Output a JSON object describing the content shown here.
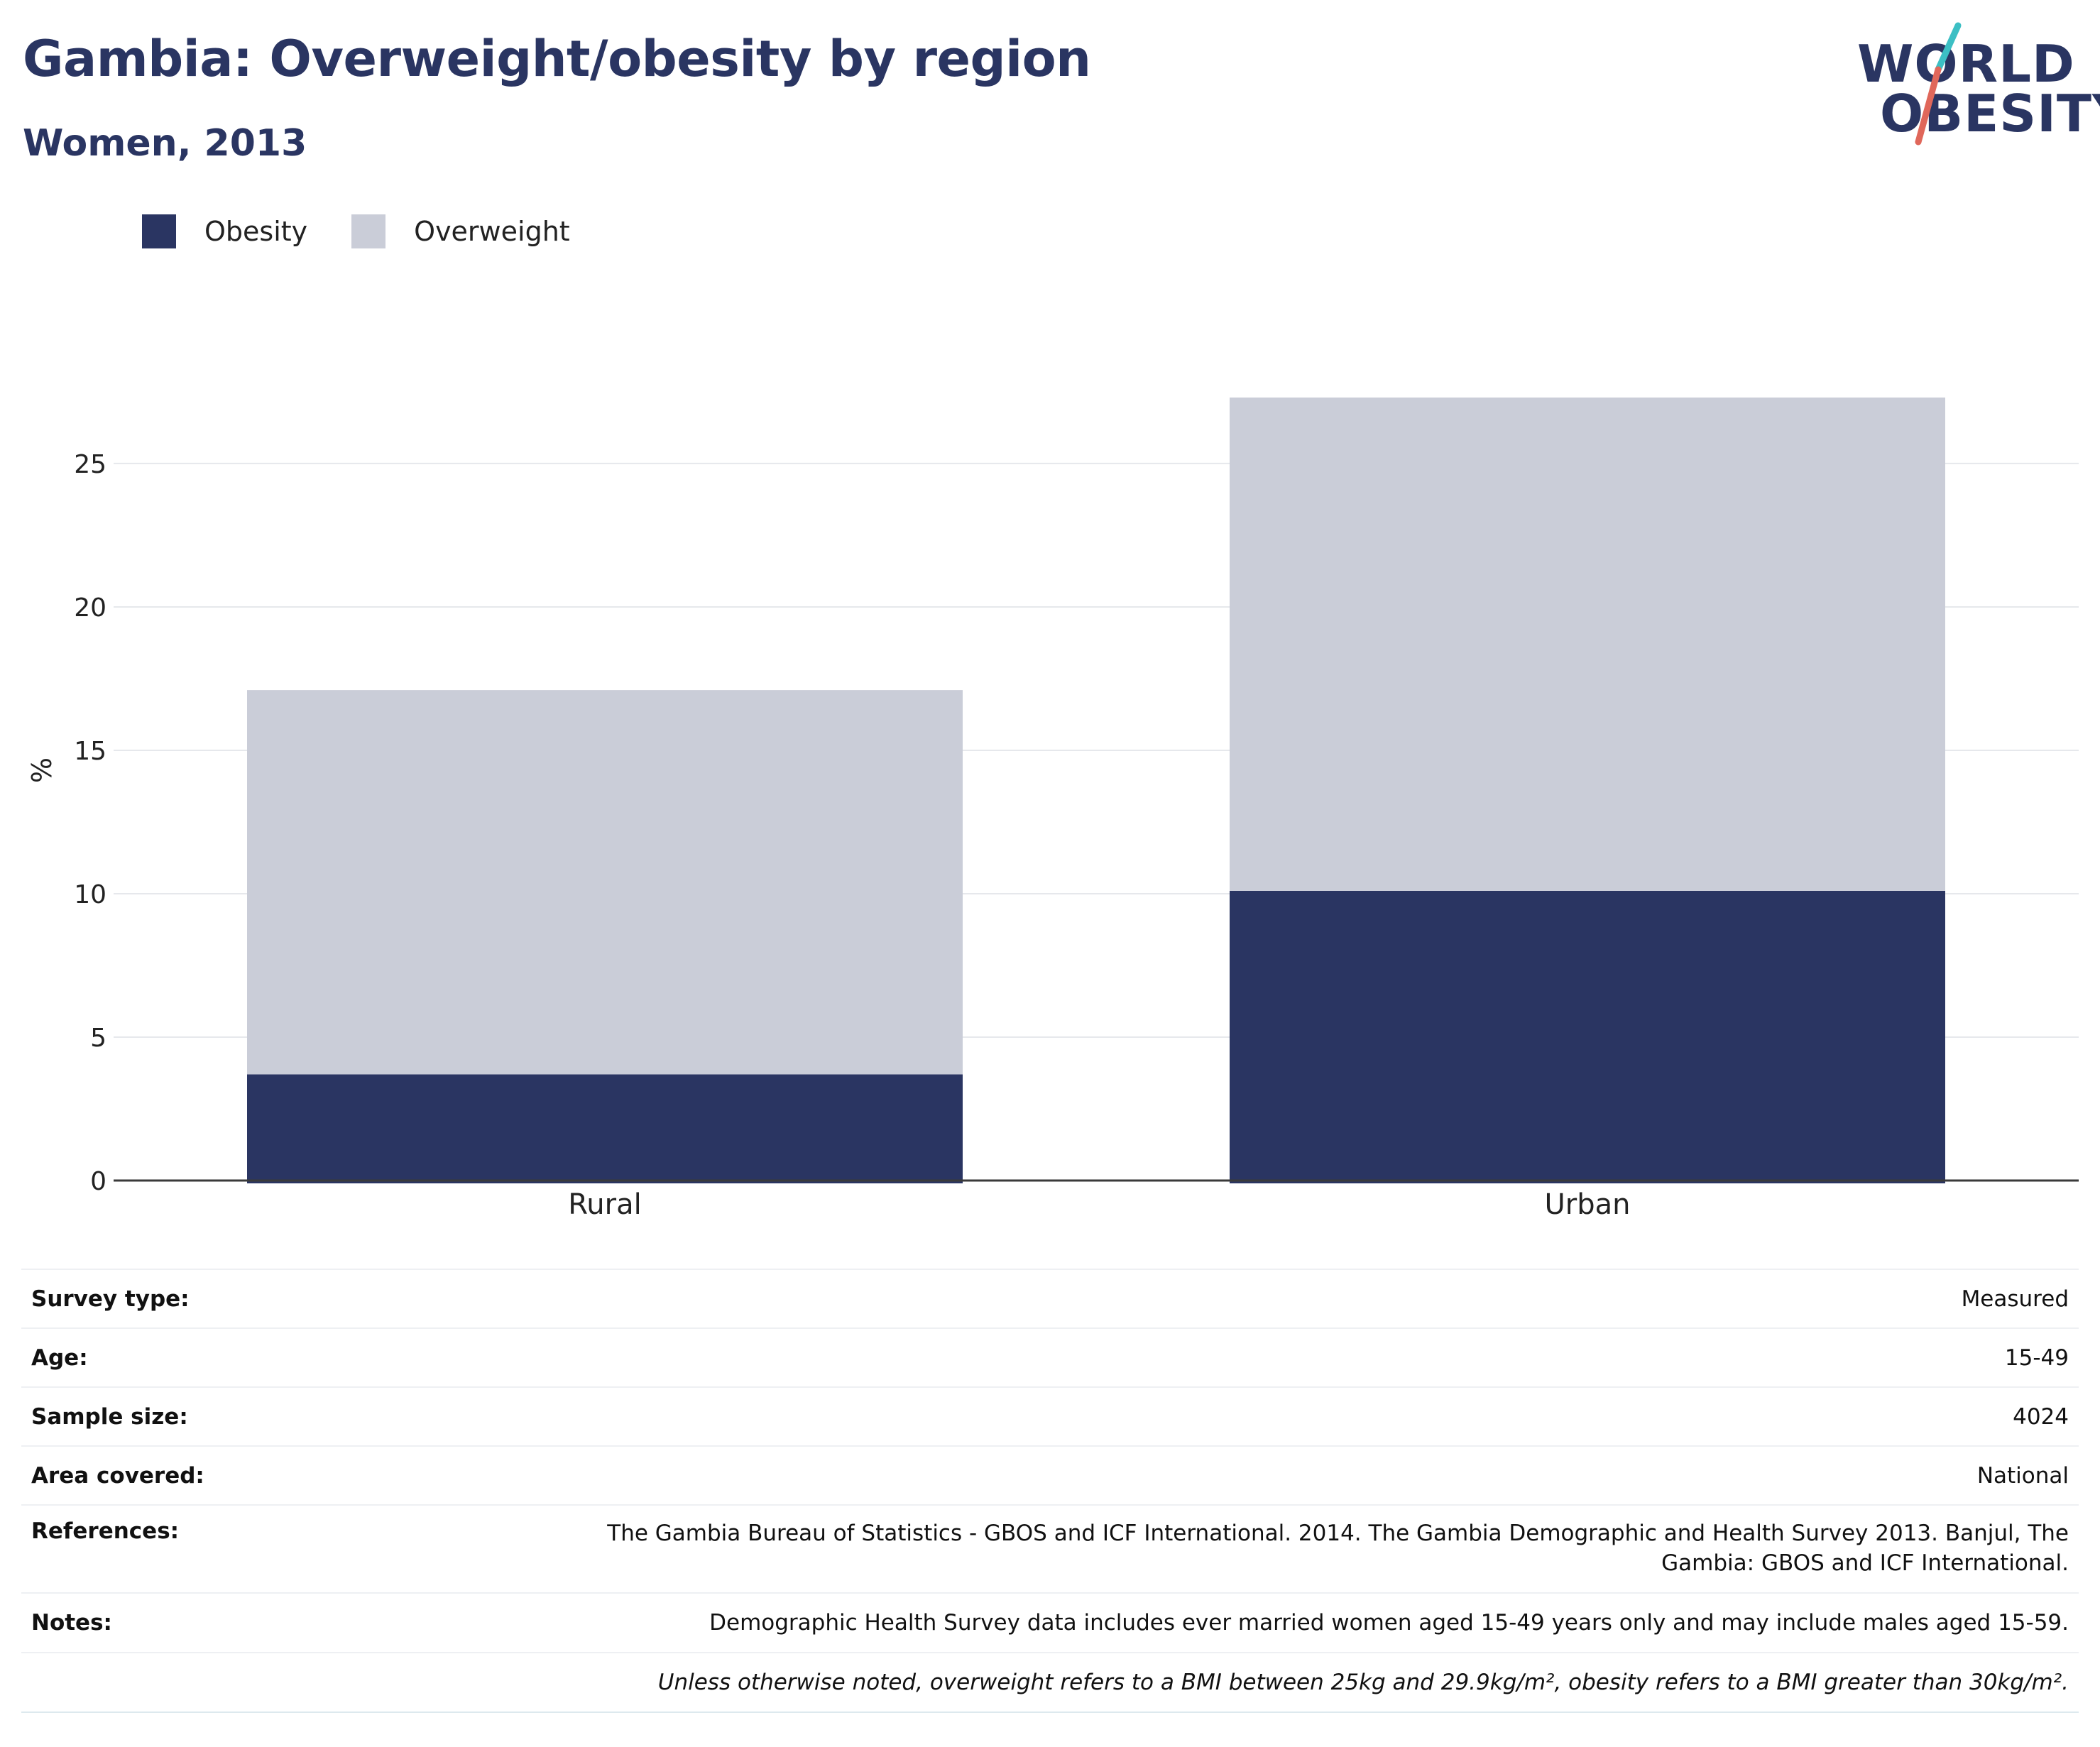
{
  "header": {
    "title": "Gambia: Overweight/obesity by region",
    "subtitle": "Women, 2013"
  },
  "logo": {
    "line1": "WORLD",
    "line2": "OBESITY"
  },
  "colors": {
    "obesity": "#2a3562",
    "overweight": "#cacdd8",
    "title": "#2a3562",
    "logo_slash_teal": "#3cbfc4",
    "logo_slash_red": "#e0675a"
  },
  "chart_data": {
    "type": "bar",
    "stacked": true,
    "categories": [
      "Rural",
      "Urban"
    ],
    "series": [
      {
        "name": "Obesity",
        "values": [
          3.7,
          10.1
        ]
      },
      {
        "name": "Overweight",
        "values": [
          13.4,
          17.2
        ]
      }
    ],
    "ylabel": "%",
    "xlabel": "",
    "ylim": [
      0,
      27.3
    ],
    "yticks": [
      0,
      5,
      10,
      15,
      20,
      25
    ],
    "grid": true,
    "legend_position": "top-left"
  },
  "legend": [
    {
      "label": "Obesity"
    },
    {
      "label": "Overweight"
    }
  ],
  "info": {
    "survey_type_label": "Survey type:",
    "survey_type_value": "Measured",
    "age_label": "Age:",
    "age_value": "15-49",
    "sample_size_label": "Sample size:",
    "sample_size_value": "4024",
    "area_label": "Area covered:",
    "area_value": "National",
    "references_label": "References:",
    "references_line1": "The Gambia Bureau of Statistics - GBOS and ICF International. 2014. The Gambia Demographic and Health Survey 2013. Banjul, The",
    "references_line2": "Gambia: GBOS and ICF International.",
    "notes_label": "Notes:",
    "notes_value": "Demographic Health Survey data includes ever married women aged 15-49 years only and may include males aged 15-59.",
    "footnote": "Unless otherwise noted, overweight refers to a BMI between 25kg and 29.9kg/m², obesity refers to a BMI greater than 30kg/m²."
  }
}
